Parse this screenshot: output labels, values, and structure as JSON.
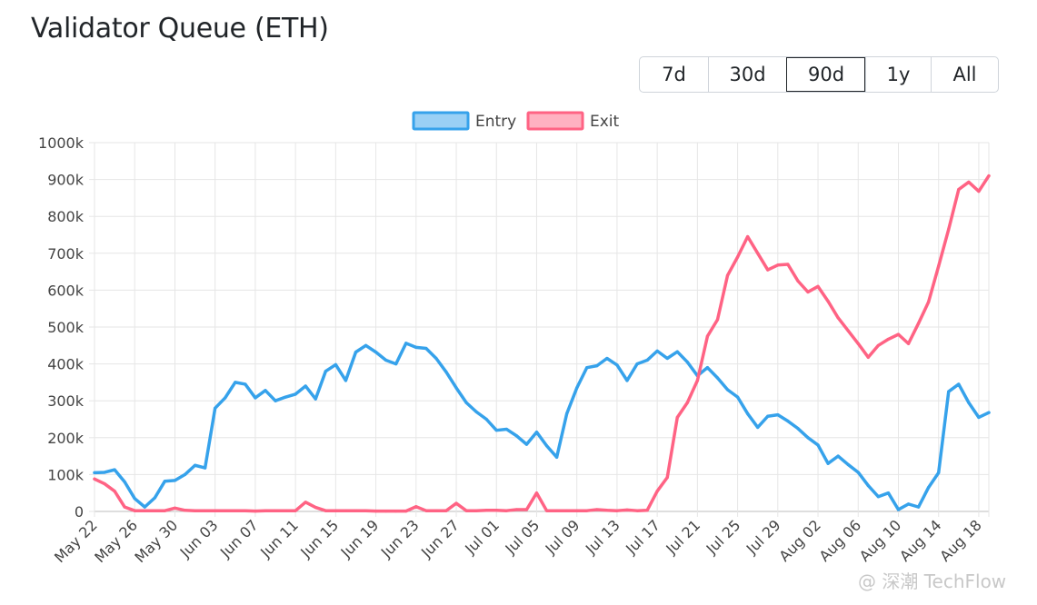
{
  "title": "Validator Queue (ETH)",
  "range_buttons": [
    {
      "label": "7d",
      "active": false
    },
    {
      "label": "30d",
      "active": false
    },
    {
      "label": "90d",
      "active": true
    },
    {
      "label": "1y",
      "active": false
    },
    {
      "label": "All",
      "active": false
    }
  ],
  "watermark": "@ 深潮 TechFlow",
  "chart_data": {
    "type": "line",
    "title": "",
    "xlabel": "",
    "ylabel": "",
    "ylim": [
      0,
      1000000
    ],
    "yticks": [
      "0",
      "100k",
      "200k",
      "300k",
      "400k",
      "500k",
      "600k",
      "700k",
      "800k",
      "900k",
      "1000k"
    ],
    "x_tick_labels": [
      "May 22",
      "May 26",
      "May 30",
      "Jun 03",
      "Jun 07",
      "Jun 11",
      "Jun 15",
      "Jun 19",
      "Jun 23",
      "Jun 27",
      "Jul 01",
      "Jul 05",
      "Jul 09",
      "Jul 13",
      "Jul 17",
      "Jul 21",
      "Jul 25",
      "Jul 29",
      "Aug 02",
      "Aug 06",
      "Aug 10",
      "Aug 14",
      "Aug 18"
    ],
    "grid": true,
    "legend": "top-center",
    "x": [
      "May 22",
      "May 23",
      "May 24",
      "May 25",
      "May 26",
      "May 27",
      "May 28",
      "May 29",
      "May 30",
      "May 31",
      "Jun 01",
      "Jun 02",
      "Jun 03",
      "Jun 04",
      "Jun 05",
      "Jun 06",
      "Jun 07",
      "Jun 08",
      "Jun 09",
      "Jun 10",
      "Jun 11",
      "Jun 12",
      "Jun 13",
      "Jun 14",
      "Jun 15",
      "Jun 16",
      "Jun 17",
      "Jun 18",
      "Jun 19",
      "Jun 20",
      "Jun 21",
      "Jun 22",
      "Jun 23",
      "Jun 24",
      "Jun 25",
      "Jun 26",
      "Jun 27",
      "Jun 28",
      "Jun 29",
      "Jun 30",
      "Jul 01",
      "Jul 02",
      "Jul 03",
      "Jul 04",
      "Jul 05",
      "Jul 06",
      "Jul 07",
      "Jul 08",
      "Jul 09",
      "Jul 10",
      "Jul 11",
      "Jul 12",
      "Jul 13",
      "Jul 14",
      "Jul 15",
      "Jul 16",
      "Jul 17",
      "Jul 18",
      "Jul 19",
      "Jul 20",
      "Jul 21",
      "Jul 22",
      "Jul 23",
      "Jul 24",
      "Jul 25",
      "Jul 26",
      "Jul 27",
      "Jul 28",
      "Jul 29",
      "Jul 30",
      "Jul 31",
      "Aug 01",
      "Aug 02",
      "Aug 03",
      "Aug 04",
      "Aug 05",
      "Aug 06",
      "Aug 07",
      "Aug 08",
      "Aug 09",
      "Aug 10",
      "Aug 11",
      "Aug 12",
      "Aug 13",
      "Aug 14",
      "Aug 15",
      "Aug 16",
      "Aug 17",
      "Aug 18",
      "Aug 19"
    ],
    "series": [
      {
        "name": "Entry",
        "color": "#36a2eb",
        "fill": "#9ad0f5",
        "values": [
          105000,
          106000,
          113000,
          80000,
          35000,
          12000,
          37000,
          82000,
          84000,
          100000,
          125000,
          118000,
          280000,
          308000,
          350000,
          345000,
          308000,
          328000,
          300000,
          310000,
          318000,
          340000,
          305000,
          380000,
          398000,
          355000,
          432000,
          450000,
          432000,
          410000,
          400000,
          456000,
          445000,
          442000,
          415000,
          378000,
          335000,
          295000,
          270000,
          250000,
          220000,
          223000,
          205000,
          182000,
          215000,
          178000,
          147000,
          265000,
          335000,
          390000,
          395000,
          415000,
          397000,
          355000,
          400000,
          410000,
          435000,
          415000,
          433000,
          405000,
          368000,
          390000,
          362000,
          330000,
          310000,
          265000,
          228000,
          258000,
          262000,
          245000,
          225000,
          200000,
          180000,
          130000,
          150000,
          127000,
          106000,
          70000,
          40000,
          50000,
          5000,
          20000,
          12000,
          65000,
          105000,
          325000,
          345000,
          295000,
          255000,
          268000
        ]
      },
      {
        "name": "Exit",
        "color": "#ff6384",
        "fill": "#ffb1c1",
        "values": [
          88000,
          75000,
          55000,
          12000,
          2000,
          2000,
          2000,
          2000,
          9000,
          3000,
          2000,
          2000,
          2000,
          2000,
          2000,
          2000,
          1000,
          2000,
          2000,
          2000,
          2000,
          25000,
          11000,
          2000,
          2000,
          2000,
          2000,
          2000,
          1000,
          1000,
          1000,
          1000,
          13000,
          2000,
          2000,
          2000,
          22000,
          2000,
          2000,
          3000,
          3000,
          2000,
          5000,
          5000,
          50000,
          2000,
          2000,
          2000,
          2000,
          2000,
          5000,
          3000,
          2000,
          4000,
          2000,
          3000,
          55000,
          92000,
          255000,
          295000,
          355000,
          475000,
          520000,
          640000,
          690000,
          745000,
          700000,
          655000,
          668000,
          670000,
          625000,
          595000,
          610000,
          570000,
          525000,
          490000,
          455000,
          418000,
          450000,
          467000,
          480000,
          455000,
          510000,
          568000,
          665000,
          765000,
          873000,
          893000,
          868000,
          910000
        ]
      }
    ]
  }
}
